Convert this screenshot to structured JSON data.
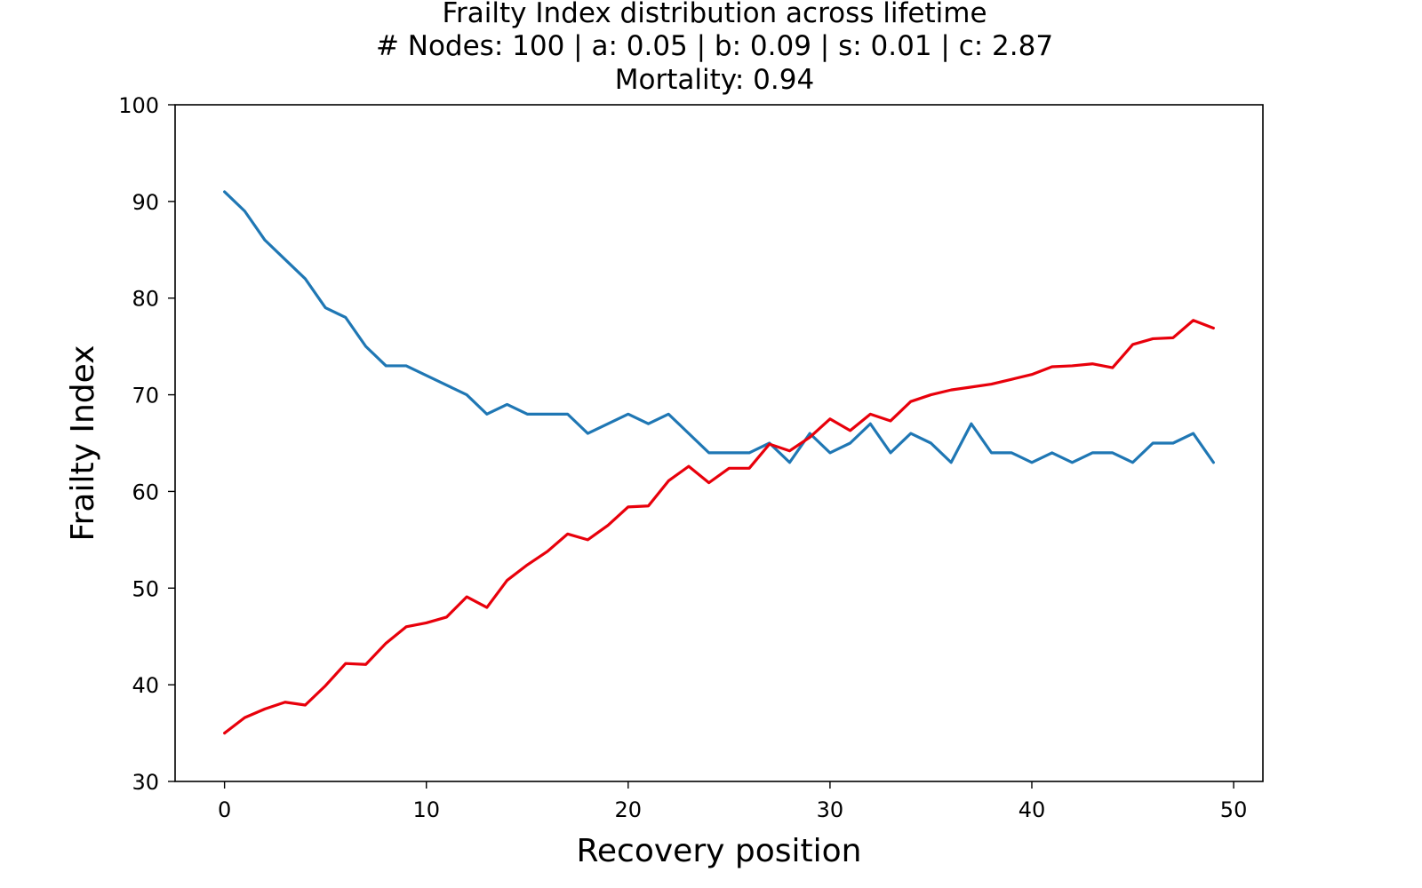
{
  "chart_data": {
    "type": "line",
    "title": "Frailty Index distribution across lifetime",
    "subtitle": "# Nodes: 100 | a: 0.05 | b: 0.09 | s: 0.01 | c: 2.87",
    "subtitle2": "Mortality: 0.94",
    "xlabel": "Recovery position",
    "ylabel": "Frailty Index",
    "xlim": [
      -2.45,
      51.45
    ],
    "ylim": [
      30,
      100
    ],
    "xticks": [
      0,
      10,
      20,
      30,
      40,
      50
    ],
    "yticks": [
      30,
      40,
      50,
      60,
      70,
      80,
      90,
      100
    ],
    "grid": false,
    "x": [
      0,
      1,
      2,
      3,
      4,
      5,
      6,
      7,
      8,
      9,
      10,
      11,
      12,
      13,
      14,
      15,
      16,
      17,
      18,
      19,
      20,
      21,
      22,
      23,
      24,
      25,
      26,
      27,
      28,
      29,
      30,
      31,
      32,
      33,
      34,
      35,
      36,
      37,
      38,
      39,
      40,
      41,
      42,
      43,
      44,
      45,
      46,
      47,
      48,
      49
    ],
    "series": [
      {
        "color": "#1f77b4",
        "values": [
          91,
          89,
          86,
          84,
          82,
          79,
          78,
          75,
          73,
          73,
          72,
          71,
          70,
          68,
          69,
          68,
          68,
          68,
          66,
          67,
          68,
          67,
          68,
          66,
          64,
          64,
          64,
          65,
          63,
          66,
          64,
          65,
          67,
          64,
          66,
          65,
          63,
          67,
          64,
          64,
          63,
          64,
          63,
          64,
          64,
          63,
          65,
          65,
          66,
          63
        ]
      },
      {
        "color": "#e8000b",
        "values": [
          35.0,
          36.6,
          37.5,
          38.2,
          37.9,
          39.9,
          42.2,
          42.1,
          44.3,
          46.0,
          46.4,
          47.0,
          49.1,
          48.0,
          50.8,
          52.4,
          53.8,
          55.6,
          55.0,
          56.5,
          58.4,
          58.5,
          61.1,
          62.6,
          60.9,
          62.4,
          62.4,
          64.9,
          64.2,
          65.6,
          67.5,
          66.3,
          68.0,
          67.3,
          69.3,
          70.0,
          70.5,
          70.8,
          71.1,
          71.6,
          72.1,
          72.9,
          73.0,
          73.2,
          72.8,
          75.2,
          75.8,
          75.9,
          77.7,
          76.9
        ]
      }
    ]
  }
}
